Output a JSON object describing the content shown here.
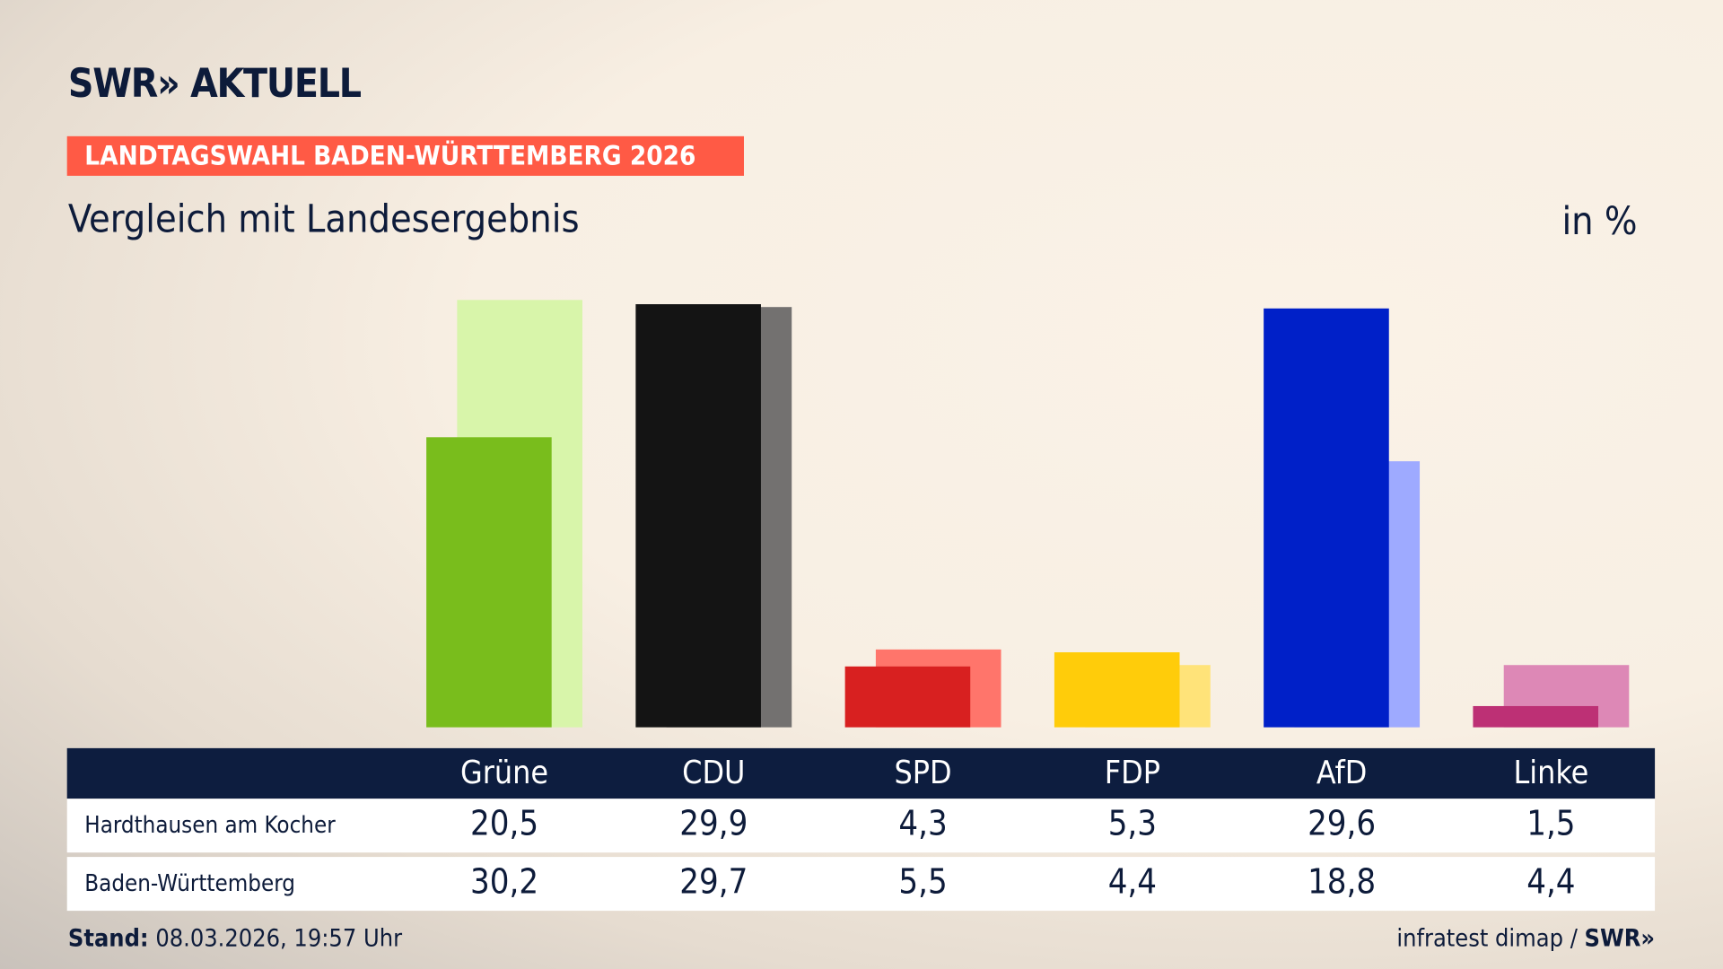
{
  "logo": "SWR» AKTUELL",
  "badge": "LANDTAGSWAHL BADEN-WÜRTTEMBERG 2026",
  "subtitle": "Vergleich mit Landesergebnis",
  "unit": "in %",
  "footer": {
    "stand_label": "Stand:",
    "stand_value": " 08.03.2026, 19:57 Uhr",
    "source": "infratest dimap / ",
    "source_logo": "SWR»"
  },
  "chart_data": {
    "type": "bar",
    "categories": [
      "Grüne",
      "CDU",
      "SPD",
      "FDP",
      "AfD",
      "Linke"
    ],
    "series": [
      {
        "name": "Hardthausen am Kocher",
        "values": [
          20.5,
          29.9,
          4.3,
          5.3,
          29.6,
          1.5
        ],
        "colors": [
          "#79bd1c",
          "#141414",
          "#d82020",
          "#ffcc0a",
          "#0020c8",
          "#bd3075"
        ]
      },
      {
        "name": "Baden-Württemberg",
        "values": [
          30.2,
          29.7,
          5.5,
          4.4,
          18.8,
          4.4
        ],
        "colors": [
          "#d8f5aa",
          "#737170",
          "#ff756b",
          "#ffe379",
          "#9eaaff",
          "#dd88b6"
        ]
      }
    ]
  }
}
